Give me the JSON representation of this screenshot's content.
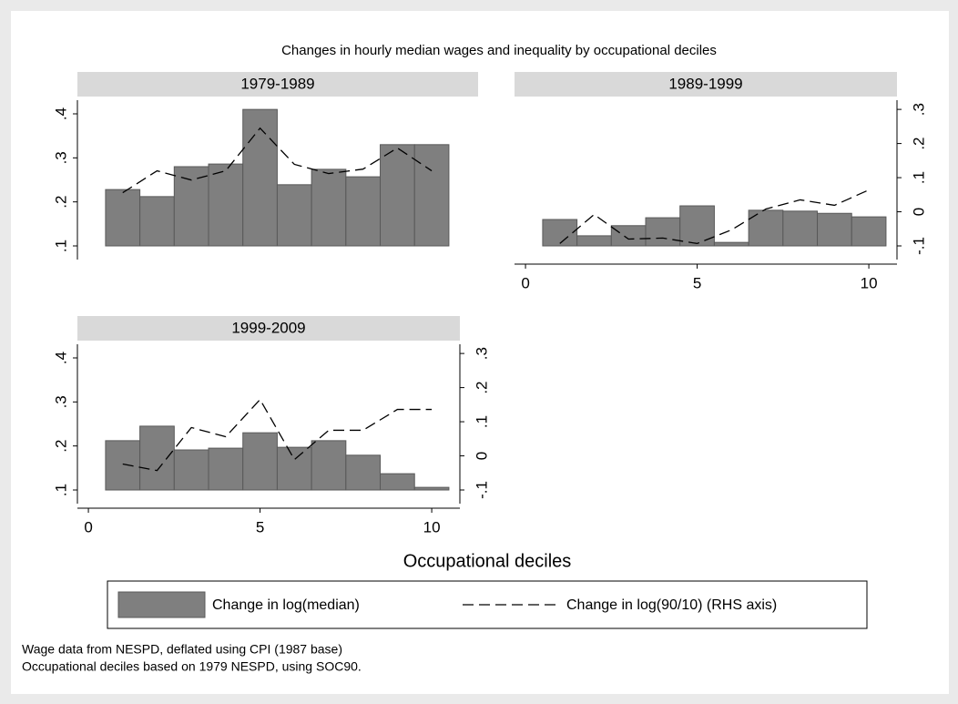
{
  "title": "Changes in hourly median wages and inequality by occupational deciles",
  "xlabel": "Occupational deciles",
  "notes": [
    "Wage data from NESPD, deflated using CPI (1987 base)",
    "Occupational deciles based on 1979 NESPD, using SOC90."
  ],
  "chart_data": [
    {
      "type": "bar",
      "title": "1979-1989",
      "base": 0.1,
      "x": [
        1,
        2,
        3,
        4,
        5,
        6,
        7,
        8,
        9,
        10
      ],
      "series": [
        {
          "name": "Change in log(median)",
          "type": "bar",
          "color": "#7f7f7f",
          "values": [
            0.228,
            0.212,
            0.28,
            0.286,
            0.41,
            0.239,
            0.274,
            0.257,
            0.33,
            0.33
          ]
        },
        {
          "name": "Change in log(90/10) (RHS axis)",
          "type": "line",
          "axis": "y2",
          "color": "#000000",
          "values": [
            0.056,
            0.12,
            0.093,
            0.12,
            0.245,
            0.139,
            0.112,
            0.125,
            0.187,
            0.12
          ]
        }
      ],
      "xlim": [
        -0.32,
        10.82
      ],
      "ylim": [
        0.069,
        0.431
      ],
      "y2lim": [
        -0.14,
        0.327
      ],
      "yticks": [
        {
          "value": 0.1,
          "label": ".1"
        },
        {
          "value": 0.2,
          "label": ".2"
        },
        {
          "value": 0.3,
          "label": ".3"
        },
        {
          "value": 0.4,
          "label": ".4"
        }
      ]
    },
    {
      "type": "bar",
      "title": "1989-1999",
      "base": 0.1,
      "x": [
        1,
        2,
        3,
        4,
        5,
        6,
        7,
        8,
        9,
        10
      ],
      "series": [
        {
          "type": "bar",
          "color": "#7f7f7f",
          "values": [
            0.16,
            0.123,
            0.146,
            0.164,
            0.191,
            0.108,
            0.181,
            0.179,
            0.174,
            0.166
          ]
        },
        {
          "type": "line",
          "axis": "y2",
          "color": "#000000",
          "values": [
            -0.093,
            -0.008,
            -0.08,
            -0.077,
            -0.093,
            -0.053,
            0.008,
            0.035,
            0.019,
            0.064
          ]
        }
      ],
      "xlim": [
        -0.32,
        10.82
      ],
      "ylim": [
        0.069,
        0.431
      ],
      "y2lim": [
        -0.14,
        0.327
      ],
      "xticks": [
        0,
        5,
        10
      ],
      "y2ticks": [
        {
          "value": -0.1,
          "label": "-.1"
        },
        0,
        {
          "value": 0.1,
          "label": ".1"
        },
        {
          "value": 0.2,
          "label": ".2"
        },
        {
          "value": 0.3,
          "label": ".3"
        }
      ]
    },
    {
      "type": "bar",
      "title": "1999-2009",
      "base": 0.1,
      "x": [
        1,
        2,
        3,
        4,
        5,
        6,
        7,
        8,
        9,
        10
      ],
      "series": [
        {
          "type": "bar",
          "color": "#7f7f7f",
          "values": [
            0.212,
            0.245,
            0.191,
            0.195,
            0.23,
            0.197,
            0.212,
            0.179,
            0.137,
            0.106
          ]
        },
        {
          "type": "line",
          "axis": "y2",
          "color": "#000000",
          "values": [
            -0.024,
            -0.043,
            0.083,
            0.056,
            0.165,
            -0.011,
            0.075,
            0.075,
            0.136,
            0.136
          ]
        }
      ],
      "xlim": [
        -0.32,
        10.82
      ],
      "ylim": [
        0.069,
        0.431
      ],
      "y2lim": [
        -0.14,
        0.327
      ],
      "xticks": [
        0,
        5,
        10
      ],
      "yticks": [
        {
          "value": 0.1,
          "label": ".1"
        },
        {
          "value": 0.2,
          "label": ".2"
        },
        {
          "value": 0.3,
          "label": ".3"
        },
        {
          "value": 0.4,
          "label": ".4"
        }
      ],
      "y2ticks": [
        {
          "value": -0.1,
          "label": "-.1"
        },
        0,
        {
          "value": 0.1,
          "label": ".1"
        },
        {
          "value": 0.2,
          "label": ".2"
        },
        {
          "value": 0.3,
          "label": ".3"
        }
      ]
    }
  ]
}
